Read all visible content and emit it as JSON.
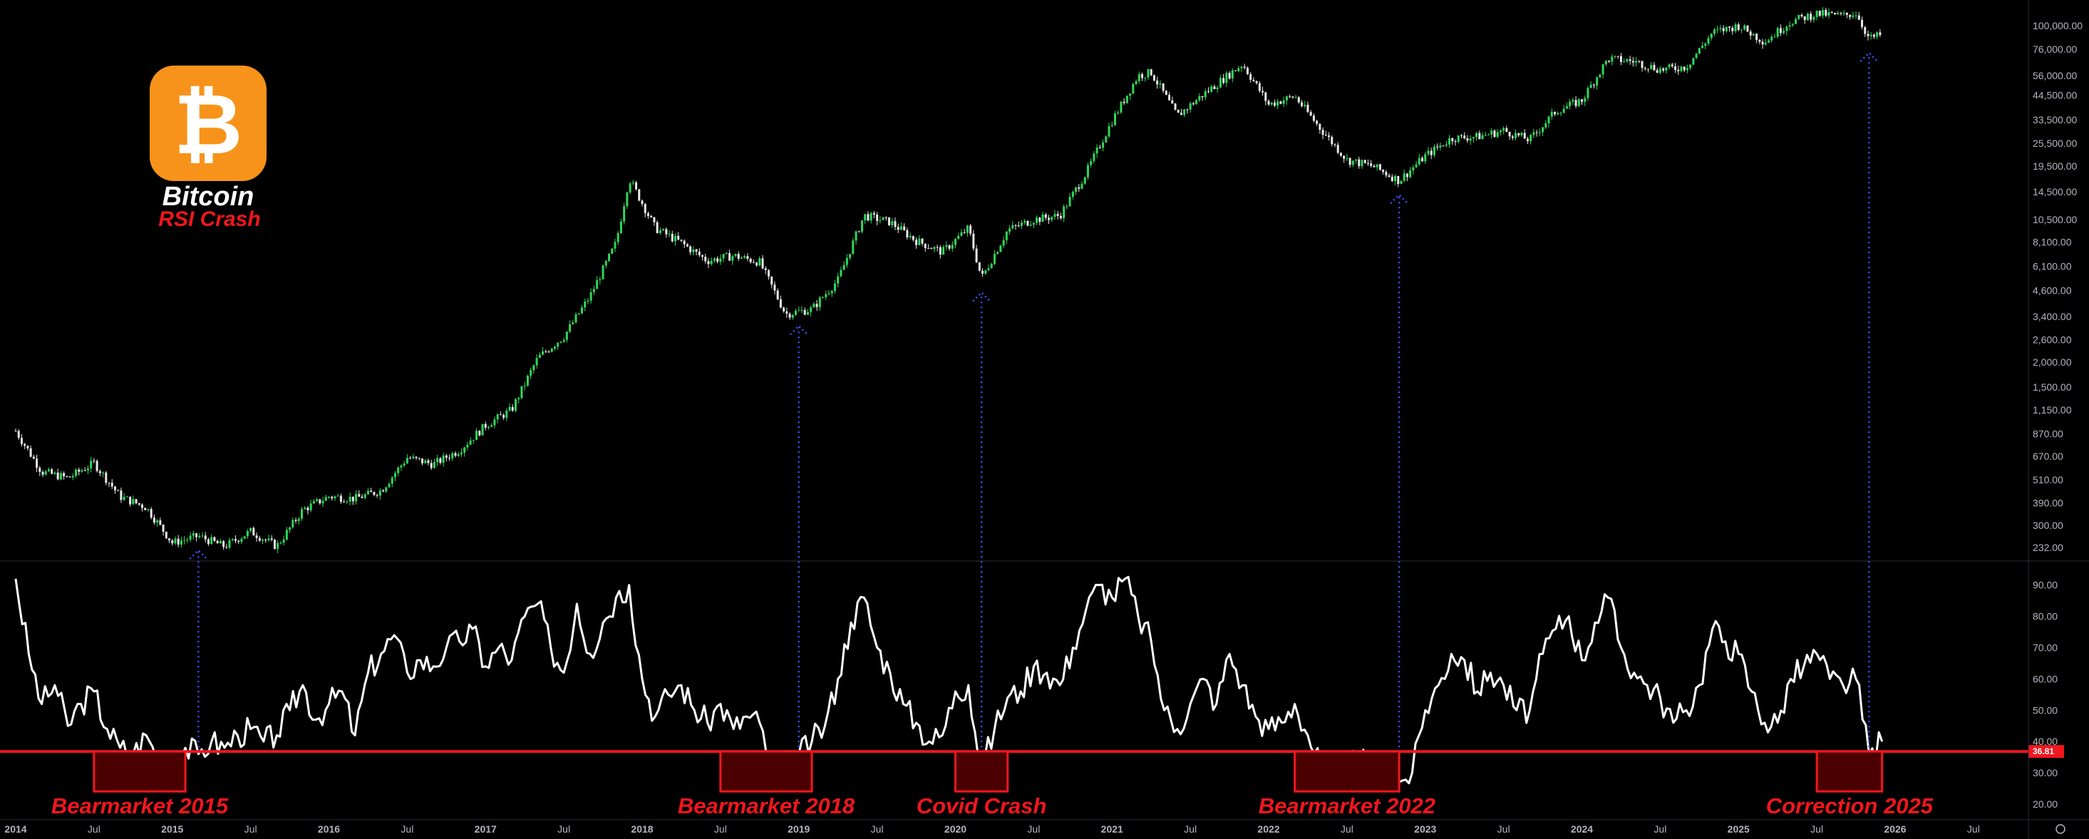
{
  "logo": {
    "icon": "bitcoin-icon",
    "symbol": "₿",
    "title": "Bitcoin",
    "subtitle": "RSI Crash",
    "icon_color": "#f7931a"
  },
  "colors": {
    "background": "#000000",
    "candle_up": "#2fd65a",
    "candle_down": "#e8e8e8",
    "rsi_line": "#ffffff",
    "threshold": "#f2161e",
    "box_fill": "#4a0000",
    "box_stroke": "#f2161e",
    "connector": "#3d56ff"
  },
  "chart_data": [
    {
      "type": "candlestick",
      "scale": "log",
      "ylim": [
        200,
        126000
      ],
      "y_ticks": [
        "232.00",
        "300.00",
        "390.00",
        "510.00",
        "670.00",
        "870.00",
        "1,150.00",
        "1,500.00",
        "2,000.00",
        "2,600.00",
        "3,400.00",
        "4,600.00",
        "6,100.00",
        "8,100.00",
        "10,500.00",
        "14,500.00",
        "19,500.00",
        "25,500.00",
        "33,500.00",
        "44,500.00",
        "56,000.00",
        "76,000.00",
        "100,000.00"
      ],
      "x_ticks": [
        "2014",
        "Jul",
        "2015",
        "Jul",
        "2016",
        "Jul",
        "2017",
        "Jul",
        "2018",
        "Jul",
        "2019",
        "Jul",
        "2020",
        "Jul",
        "2021",
        "Jul",
        "2022",
        "Jul",
        "2023",
        "Jul",
        "2024",
        "Jul",
        "2025",
        "Jul",
        "2026",
        "Jul"
      ],
      "xlim": [
        "2014-01",
        "2027-01"
      ],
      "series": [
        {
          "points": [
            [
              "2014-01",
              900
            ],
            [
              "2014-03",
              560
            ],
            [
              "2014-05",
              520
            ],
            [
              "2014-07",
              620
            ],
            [
              "2014-09",
              420
            ],
            [
              "2014-11",
              370
            ],
            [
              "2015-01",
              245
            ],
            [
              "2015-03",
              265
            ],
            [
              "2015-05",
              235
            ],
            [
              "2015-07",
              280
            ],
            [
              "2015-09",
              235
            ],
            [
              "2015-11",
              360
            ],
            [
              "2016-01",
              420
            ],
            [
              "2016-03",
              410
            ],
            [
              "2016-05",
              450
            ],
            [
              "2016-07",
              660
            ],
            [
              "2016-09",
              610
            ],
            [
              "2016-11",
              720
            ],
            [
              "2017-01",
              960
            ],
            [
              "2017-03",
              1150
            ],
            [
              "2017-05",
              2100
            ],
            [
              "2017-07",
              2700
            ],
            [
              "2017-09",
              4300
            ],
            [
              "2017-11",
              8000
            ],
            [
              "2017-12",
              17000
            ],
            [
              "2018-02",
              9500
            ],
            [
              "2018-04",
              8000
            ],
            [
              "2018-06",
              6500
            ],
            [
              "2018-08",
              6900
            ],
            [
              "2018-10",
              6400
            ],
            [
              "2018-12",
              3500
            ],
            [
              "2019-02",
              3700
            ],
            [
              "2019-04",
              5200
            ],
            [
              "2019-06",
              11000
            ],
            [
              "2019-08",
              10200
            ],
            [
              "2019-10",
              8200
            ],
            [
              "2019-12",
              7200
            ],
            [
              "2020-02",
              9500
            ],
            [
              "2020-03",
              5300
            ],
            [
              "2020-05",
              9300
            ],
            [
              "2020-07",
              10500
            ],
            [
              "2020-09",
              11000
            ],
            [
              "2020-11",
              18000
            ],
            [
              "2021-01",
              33000
            ],
            [
              "2021-03",
              56000
            ],
            [
              "2021-04",
              58000
            ],
            [
              "2021-06",
              35000
            ],
            [
              "2021-08",
              45000
            ],
            [
              "2021-11",
              64000
            ],
            [
              "2022-01",
              40000
            ],
            [
              "2022-03",
              44000
            ],
            [
              "2022-05",
              30000
            ],
            [
              "2022-07",
              21000
            ],
            [
              "2022-09",
              19500
            ],
            [
              "2022-11",
              16500
            ],
            [
              "2023-01",
              22000
            ],
            [
              "2023-03",
              27000
            ],
            [
              "2023-05",
              27500
            ],
            [
              "2023-07",
              29500
            ],
            [
              "2023-09",
              26500
            ],
            [
              "2023-11",
              37000
            ],
            [
              "2024-01",
              42000
            ],
            [
              "2024-03",
              68000
            ],
            [
              "2024-05",
              66000
            ],
            [
              "2024-07",
              60000
            ],
            [
              "2024-09",
              62000
            ],
            [
              "2024-11",
              92000
            ],
            [
              "2025-01",
              100000
            ],
            [
              "2025-03",
              83000
            ],
            [
              "2025-05",
              105000
            ],
            [
              "2025-07",
              115000
            ],
            [
              "2025-09",
              112000
            ],
            [
              "2025-10",
              116000
            ],
            [
              "2025-11",
              86000
            ],
            [
              "2025-12",
              90000
            ]
          ]
        }
      ]
    },
    {
      "type": "line",
      "name": "RSI",
      "ylim": [
        15,
        97
      ],
      "y_ticks": [
        "20.00",
        "30.00",
        "40.00",
        "50.00",
        "60.00",
        "70.00",
        "80.00",
        "90.00"
      ],
      "threshold": 36.81,
      "threshold_label": "36.81",
      "series": [
        {
          "points": [
            [
              "2014-01",
              92
            ],
            [
              "2014-02",
              68
            ],
            [
              "2014-03",
              52
            ],
            [
              "2014-04",
              58
            ],
            [
              "2014-05",
              45
            ],
            [
              "2014-06",
              52
            ],
            [
              "2014-07",
              56
            ],
            [
              "2014-08",
              44
            ],
            [
              "2014-09",
              38
            ],
            [
              "2014-10",
              36
            ],
            [
              "2014-11",
              42
            ],
            [
              "2014-12",
              34
            ],
            [
              "2015-01",
              30
            ],
            [
              "2015-02",
              38
            ],
            [
              "2015-03",
              36
            ],
            [
              "2015-04",
              40
            ],
            [
              "2015-05",
              38
            ],
            [
              "2015-06",
              42
            ],
            [
              "2015-07",
              44
            ],
            [
              "2015-08",
              40
            ],
            [
              "2015-09",
              42
            ],
            [
              "2015-10",
              50
            ],
            [
              "2015-11",
              58
            ],
            [
              "2015-12",
              47
            ],
            [
              "2016-01",
              52
            ],
            [
              "2016-02",
              56
            ],
            [
              "2016-03",
              42
            ],
            [
              "2016-04",
              62
            ],
            [
              "2016-05",
              68
            ],
            [
              "2016-06",
              74
            ],
            [
              "2016-07",
              62
            ],
            [
              "2016-08",
              66
            ],
            [
              "2016-09",
              64
            ],
            [
              "2016-10",
              70
            ],
            [
              "2016-11",
              72
            ],
            [
              "2016-12",
              76
            ],
            [
              "2017-01",
              64
            ],
            [
              "2017-02",
              70
            ],
            [
              "2017-03",
              66
            ],
            [
              "2017-04",
              80
            ],
            [
              "2017-05",
              84
            ],
            [
              "2017-06",
              70
            ],
            [
              "2017-07",
              62
            ],
            [
              "2017-08",
              84
            ],
            [
              "2017-09",
              68
            ],
            [
              "2017-10",
              78
            ],
            [
              "2017-11",
              86
            ],
            [
              "2017-12",
              90
            ],
            [
              "2018-01",
              60
            ],
            [
              "2018-02",
              48
            ],
            [
              "2018-03",
              55
            ],
            [
              "2018-04",
              58
            ],
            [
              "2018-05",
              50
            ],
            [
              "2018-06",
              46
            ],
            [
              "2018-07",
              52
            ],
            [
              "2018-08",
              44
            ],
            [
              "2018-09",
              48
            ],
            [
              "2018-10",
              46
            ],
            [
              "2018-11",
              30
            ],
            [
              "2018-12",
              32
            ],
            [
              "2019-01",
              36
            ],
            [
              "2019-02",
              40
            ],
            [
              "2019-03",
              45
            ],
            [
              "2019-04",
              60
            ],
            [
              "2019-05",
              78
            ],
            [
              "2019-06",
              86
            ],
            [
              "2019-07",
              70
            ],
            [
              "2019-08",
              62
            ],
            [
              "2019-09",
              52
            ],
            [
              "2019-10",
              46
            ],
            [
              "2019-11",
              40
            ],
            [
              "2019-12",
              42
            ],
            [
              "2020-01",
              56
            ],
            [
              "2020-02",
              58
            ],
            [
              "2020-03",
              31
            ],
            [
              "2020-04",
              44
            ],
            [
              "2020-05",
              54
            ],
            [
              "2020-06",
              56
            ],
            [
              "2020-07",
              64
            ],
            [
              "2020-08",
              62
            ],
            [
              "2020-09",
              58
            ],
            [
              "2020-10",
              70
            ],
            [
              "2020-11",
              82
            ],
            [
              "2020-12",
              90
            ],
            [
              "2021-01",
              86
            ],
            [
              "2021-02",
              92
            ],
            [
              "2021-03",
              80
            ],
            [
              "2021-04",
              72
            ],
            [
              "2021-05",
              50
            ],
            [
              "2021-06",
              44
            ],
            [
              "2021-07",
              52
            ],
            [
              "2021-08",
              60
            ],
            [
              "2021-09",
              52
            ],
            [
              "2021-10",
              68
            ],
            [
              "2021-11",
              58
            ],
            [
              "2021-12",
              48
            ],
            [
              "2022-01",
              44
            ],
            [
              "2022-02",
              46
            ],
            [
              "2022-03",
              52
            ],
            [
              "2022-04",
              42
            ],
            [
              "2022-05",
              32
            ],
            [
              "2022-06",
              26
            ],
            [
              "2022-07",
              32
            ],
            [
              "2022-08",
              34
            ],
            [
              "2022-09",
              31
            ],
            [
              "2022-10",
              33
            ],
            [
              "2022-11",
              27
            ],
            [
              "2022-12",
              30
            ],
            [
              "2023-01",
              50
            ],
            [
              "2023-02",
              58
            ],
            [
              "2023-03",
              68
            ],
            [
              "2023-04",
              66
            ],
            [
              "2023-05",
              56
            ],
            [
              "2023-06",
              62
            ],
            [
              "2023-07",
              58
            ],
            [
              "2023-08",
              50
            ],
            [
              "2023-09",
              50
            ],
            [
              "2023-10",
              68
            ],
            [
              "2023-11",
              76
            ],
            [
              "2023-12",
              80
            ],
            [
              "2024-01",
              66
            ],
            [
              "2024-02",
              78
            ],
            [
              "2024-03",
              86
            ],
            [
              "2024-04",
              70
            ],
            [
              "2024-05",
              62
            ],
            [
              "2024-06",
              58
            ],
            [
              "2024-07",
              54
            ],
            [
              "2024-08",
              46
            ],
            [
              "2024-09",
              50
            ],
            [
              "2024-10",
              58
            ],
            [
              "2024-11",
              76
            ],
            [
              "2024-12",
              72
            ],
            [
              "2025-01",
              68
            ],
            [
              "2025-02",
              56
            ],
            [
              "2025-03",
              46
            ],
            [
              "2025-04",
              46
            ],
            [
              "2025-05",
              60
            ],
            [
              "2025-06",
              64
            ],
            [
              "2025-07",
              68
            ],
            [
              "2025-08",
              60
            ],
            [
              "2025-09",
              58
            ],
            [
              "2025-10",
              60
            ],
            [
              "2025-11",
              36
            ],
            [
              "2025-12",
              40
            ]
          ]
        }
      ],
      "annotations": [
        {
          "label": "Bearmarket 2015",
          "box": [
            "2014-07",
            "2015-02"
          ],
          "connector": "2015-03"
        },
        {
          "label": "Bearmarket 2018",
          "box": [
            "2018-07",
            "2019-02"
          ],
          "connector": "2019-01"
        },
        {
          "label": "Covid Crash",
          "box": [
            "2020-01",
            "2020-05"
          ],
          "connector": "2020-03"
        },
        {
          "label": "Bearmarket 2022",
          "box": [
            "2022-03",
            "2022-11"
          ],
          "connector": "2022-11"
        },
        {
          "label": "Correction 2025",
          "box": [
            "2025-07",
            "2025-12"
          ],
          "connector": "2025-11"
        }
      ]
    }
  ]
}
